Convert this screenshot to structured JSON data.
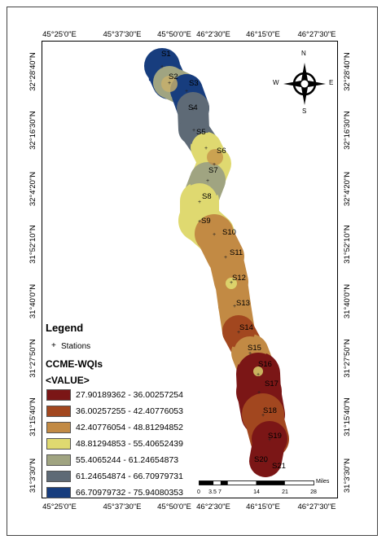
{
  "longitude_labels": [
    "45°25'0\"E",
    "45°37'30\"E",
    "45°50'0\"E",
    "46°2'30\"E",
    "46°15'0\"E",
    "46°27'30\"E"
  ],
  "latitude_labels": [
    "32°28'40\"N",
    "32°16'30\"N",
    "32°4'20\"N",
    "31°52'10\"N",
    "31°40'0\"N",
    "31°27'50\"N",
    "31°15'40\"N",
    "31°3'30\"N"
  ],
  "stations": [
    "S1",
    "S2",
    "S3",
    "S4",
    "S5",
    "S6",
    "S7",
    "S8",
    "S9",
    "S10",
    "S11",
    "S12",
    "S13",
    "S14",
    "S15",
    "S16",
    "S17",
    "S18",
    "S19",
    "S20",
    "S21"
  ],
  "north_arrow": {
    "n": "N",
    "s": "S",
    "e": "E",
    "w": "W"
  },
  "legend": {
    "title": "Legend",
    "station_label": "Stations",
    "station_symbol": "+",
    "wqi_title": "CCME-WQIs",
    "value_label": "<VALUE>",
    "classes": [
      {
        "label": "27.90189362 - 36.00257254",
        "color": "#7b1616"
      },
      {
        "label": "36.00257255 - 42.40776053",
        "color": "#a2471f"
      },
      {
        "label": "42.40776054 - 48.81294852",
        "color": "#c28a44"
      },
      {
        "label": "48.81294853 - 55.40652439",
        "color": "#dfd970"
      },
      {
        "label": "55.4065244 - 61.24654873",
        "color": "#a0a481"
      },
      {
        "label": "61.24654874 - 66.70979731",
        "color": "#5e6a76"
      },
      {
        "label": "66.70979732 - 75.94080353",
        "color": "#173d7e"
      }
    ]
  },
  "scale": {
    "ticks": [
      "0",
      "3.5",
      "7",
      "14",
      "21",
      "28"
    ],
    "unit": "Miles"
  },
  "station_classes": [
    6,
    4,
    6,
    5,
    5,
    3,
    3,
    4,
    3,
    3,
    2,
    2,
    2,
    2,
    1,
    2,
    0,
    0,
    1,
    0,
    0
  ]
}
